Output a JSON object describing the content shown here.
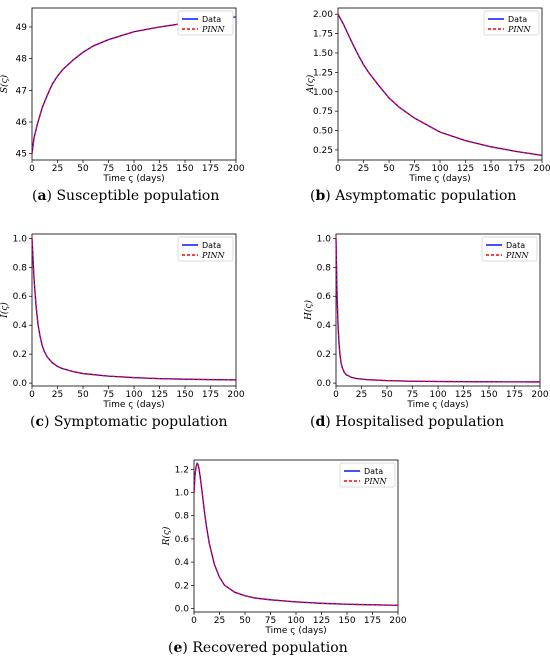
{
  "chart_data": [
    {
      "type": "line",
      "label": "a",
      "caption": "Susceptible population",
      "ylabel": "S(ς)",
      "xlabel": "Time ς (days)",
      "xlim": [
        0,
        200
      ],
      "ylim": [
        44.8,
        49.6
      ],
      "xticks": [
        0,
        25,
        50,
        75,
        100,
        125,
        150,
        175,
        200
      ],
      "yticks": [
        45,
        46,
        47,
        48,
        49
      ],
      "ytick_labels": [
        "45",
        "46",
        "47",
        "48",
        "49"
      ],
      "x": [
        0,
        2,
        5,
        10,
        15,
        20,
        25,
        30,
        40,
        50,
        60,
        75,
        100,
        125,
        150,
        175,
        200
      ],
      "series": [
        {
          "name": "Data",
          "color": "#0000ff",
          "style": "solid",
          "values": [
            45.0,
            45.5,
            45.9,
            46.45,
            46.85,
            47.2,
            47.45,
            47.65,
            47.95,
            48.2,
            48.4,
            48.6,
            48.85,
            49.0,
            49.12,
            49.23,
            49.32
          ]
        },
        {
          "name": "PINN",
          "color": "#ff0000",
          "style": "dashed",
          "values": [
            45.0,
            45.5,
            45.9,
            46.45,
            46.85,
            47.2,
            47.45,
            47.65,
            47.95,
            48.2,
            48.4,
            48.6,
            48.85,
            49.0,
            49.12,
            49.23,
            49.32
          ]
        }
      ]
    },
    {
      "type": "line",
      "label": "b",
      "caption": "Asymptomatic population",
      "ylabel": "A(ς)",
      "xlabel": "Time ς (days)",
      "xlim": [
        0,
        200
      ],
      "ylim": [
        0.12,
        2.08
      ],
      "xticks": [
        0,
        25,
        50,
        75,
        100,
        125,
        150,
        175,
        200
      ],
      "yticks": [
        0.25,
        0.5,
        0.75,
        1.0,
        1.25,
        1.5,
        1.75,
        2.0
      ],
      "ytick_labels": [
        "0.25",
        "0.50",
        "0.75",
        "1.00",
        "1.25",
        "1.50",
        "1.75",
        "2.00"
      ],
      "x": [
        0,
        5,
        10,
        15,
        20,
        25,
        30,
        40,
        50,
        60,
        75,
        100,
        125,
        150,
        175,
        200
      ],
      "series": [
        {
          "name": "Data",
          "color": "#0000ff",
          "style": "solid",
          "values": [
            2.0,
            1.88,
            1.74,
            1.6,
            1.47,
            1.35,
            1.25,
            1.08,
            0.92,
            0.8,
            0.66,
            0.48,
            0.37,
            0.29,
            0.23,
            0.18
          ]
        },
        {
          "name": "PINN",
          "color": "#ff0000",
          "style": "dashed",
          "values": [
            2.0,
            1.88,
            1.74,
            1.6,
            1.47,
            1.35,
            1.25,
            1.08,
            0.92,
            0.8,
            0.66,
            0.48,
            0.37,
            0.29,
            0.23,
            0.18
          ]
        }
      ]
    },
    {
      "type": "line",
      "label": "c",
      "caption": "Symptomatic population",
      "ylabel": "I(ς)",
      "xlabel": "Time ς (days)",
      "xlim": [
        0,
        200
      ],
      "ylim": [
        -0.02,
        1.03
      ],
      "xticks": [
        0,
        25,
        50,
        75,
        100,
        125,
        150,
        175,
        200
      ],
      "yticks": [
        0.0,
        0.2,
        0.4,
        0.6,
        0.8,
        1.0
      ],
      "ytick_labels": [
        "0.0",
        "0.2",
        "0.4",
        "0.6",
        "0.8",
        "1.0"
      ],
      "x": [
        0,
        2,
        4,
        6,
        8,
        10,
        12,
        15,
        20,
        25,
        30,
        40,
        50,
        75,
        100,
        125,
        150,
        175,
        200
      ],
      "series": [
        {
          "name": "Data",
          "color": "#0000ff",
          "style": "solid",
          "values": [
            1.0,
            0.72,
            0.53,
            0.4,
            0.32,
            0.26,
            0.22,
            0.18,
            0.14,
            0.115,
            0.1,
            0.08,
            0.066,
            0.048,
            0.038,
            0.031,
            0.027,
            0.024,
            0.022
          ]
        },
        {
          "name": "PINN",
          "color": "#ff0000",
          "style": "dashed",
          "values": [
            1.0,
            0.72,
            0.53,
            0.4,
            0.32,
            0.26,
            0.22,
            0.18,
            0.14,
            0.115,
            0.1,
            0.08,
            0.066,
            0.048,
            0.038,
            0.031,
            0.027,
            0.024,
            0.022
          ]
        }
      ]
    },
    {
      "type": "line",
      "label": "d",
      "caption": "Hospitalised population",
      "ylabel": "H(ς)",
      "xlabel": "Time ς (days)",
      "xlim": [
        0,
        200
      ],
      "ylim": [
        -0.02,
        1.03
      ],
      "xticks": [
        0,
        25,
        50,
        75,
        100,
        125,
        150,
        175,
        200
      ],
      "yticks": [
        0.0,
        0.2,
        0.4,
        0.6,
        0.8,
        1.0
      ],
      "ytick_labels": [
        "0.0",
        "0.2",
        "0.4",
        "0.6",
        "0.8",
        "1.0"
      ],
      "x": [
        0,
        1,
        2,
        3,
        4,
        5,
        6,
        8,
        10,
        15,
        20,
        30,
        50,
        75,
        100,
        150,
        200
      ],
      "series": [
        {
          "name": "Data",
          "color": "#0000ff",
          "style": "solid",
          "values": [
            1.0,
            0.62,
            0.4,
            0.27,
            0.19,
            0.14,
            0.11,
            0.075,
            0.058,
            0.04,
            0.032,
            0.024,
            0.017,
            0.013,
            0.011,
            0.009,
            0.008
          ]
        },
        {
          "name": "PINN",
          "color": "#ff0000",
          "style": "dashed",
          "values": [
            1.0,
            0.62,
            0.4,
            0.27,
            0.19,
            0.14,
            0.11,
            0.075,
            0.058,
            0.04,
            0.032,
            0.024,
            0.017,
            0.013,
            0.011,
            0.009,
            0.008
          ]
        }
      ]
    },
    {
      "type": "line",
      "label": "e",
      "caption": "Recovered population",
      "ylabel": "R(ς)",
      "xlabel": "Time ς (days)",
      "xlim": [
        0,
        200
      ],
      "ylim": [
        -0.03,
        1.28
      ],
      "xticks": [
        0,
        25,
        50,
        75,
        100,
        125,
        150,
        175,
        200
      ],
      "yticks": [
        0.0,
        0.2,
        0.4,
        0.6,
        0.8,
        1.0,
        1.2
      ],
      "ytick_labels": [
        "0.0",
        "0.2",
        "0.4",
        "0.6",
        "0.8",
        "1.0",
        "1.2"
      ],
      "x": [
        0,
        1,
        2,
        3,
        4,
        5,
        6,
        8,
        10,
        12,
        15,
        20,
        25,
        30,
        40,
        50,
        60,
        75,
        100,
        125,
        150,
        175,
        200
      ],
      "series": [
        {
          "name": "Data",
          "color": "#0000ff",
          "style": "solid",
          "values": [
            1.0,
            1.15,
            1.22,
            1.25,
            1.24,
            1.2,
            1.14,
            1.0,
            0.85,
            0.72,
            0.56,
            0.38,
            0.27,
            0.2,
            0.14,
            0.11,
            0.09,
            0.075,
            0.057,
            0.045,
            0.037,
            0.032,
            0.028
          ]
        },
        {
          "name": "PINN",
          "color": "#ff0000",
          "style": "dashed",
          "values": [
            1.0,
            1.15,
            1.22,
            1.25,
            1.24,
            1.2,
            1.14,
            1.0,
            0.85,
            0.72,
            0.56,
            0.38,
            0.27,
            0.2,
            0.14,
            0.11,
            0.09,
            0.075,
            0.057,
            0.045,
            0.037,
            0.032,
            0.028
          ]
        }
      ]
    }
  ]
}
